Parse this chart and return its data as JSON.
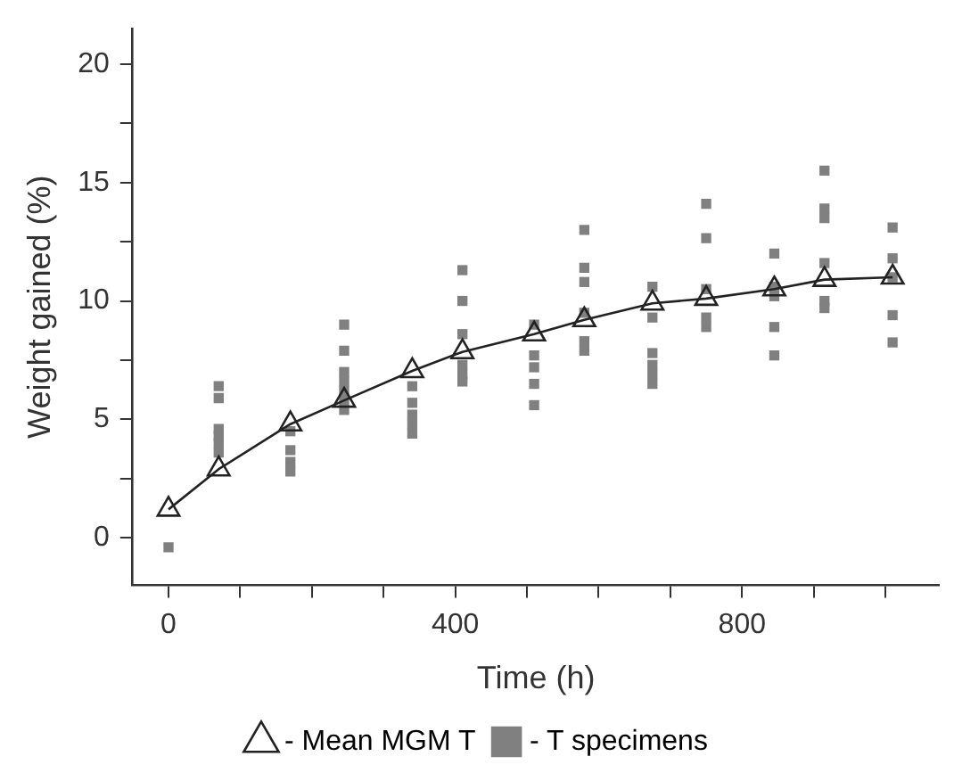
{
  "chart_data": {
    "type": "scatter",
    "xlabel": "Time (h)",
    "ylabel": "Weight gained (%)",
    "legend": "bottom",
    "xlim": [
      -50,
      1075
    ],
    "xticks": [
      0,
      {
        "value": 100,
        "label": null
      },
      {
        "value": 200,
        "label": null
      },
      {
        "value": 300,
        "label": null
      },
      400,
      {
        "value": 500,
        "label": null
      },
      {
        "value": 600,
        "label": null
      },
      {
        "value": 700,
        "label": null
      },
      800,
      {
        "value": 900,
        "label": null
      },
      {
        "value": 1000,
        "label": null
      }
    ],
    "ylim": [
      -2,
      21.5
    ],
    "yticks": [
      0,
      {
        "value": 2.5,
        "label": null
      },
      5,
      {
        "value": 7.5,
        "label": null
      },
      10,
      {
        "value": 12.5,
        "label": null
      },
      15,
      {
        "value": 17.5,
        "label": null
      },
      20
    ],
    "series": [
      {
        "name": "- Mean MGM T",
        "type": "line",
        "marker": "triangle",
        "color": "#222222",
        "x": [
          0,
          70,
          170,
          245,
          340,
          410,
          510,
          580,
          675,
          750,
          845,
          915,
          1010
        ],
        "values": [
          1.2,
          2.9,
          4.8,
          5.8,
          7.05,
          7.85,
          8.6,
          9.2,
          9.9,
          10.1,
          10.5,
          10.9,
          11.0
        ]
      },
      {
        "name": "- T specimens",
        "type": "scatter",
        "marker": "square",
        "color": "#808080",
        "x": [
          0,
          70,
          70,
          70,
          70,
          70,
          70,
          170,
          170,
          170,
          170,
          245,
          245,
          245,
          245,
          245,
          245,
          245,
          340,
          340,
          340,
          340,
          340,
          410,
          410,
          410,
          410,
          410,
          410,
          510,
          510,
          510,
          510,
          510,
          580,
          580,
          580,
          580,
          580,
          580,
          675,
          675,
          675,
          675,
          675,
          675,
          750,
          750,
          750,
          750,
          750,
          845,
          845,
          845,
          845,
          845,
          915,
          915,
          915,
          915,
          915,
          915,
          1010,
          1010,
          1010,
          1010,
          1010
        ],
        "values": [
          -0.4,
          6.4,
          5.9,
          4.6,
          4.3,
          4.0,
          3.6,
          4.5,
          3.7,
          3.2,
          2.8,
          9.0,
          7.9,
          7.0,
          6.6,
          6.2,
          5.8,
          5.4,
          6.4,
          5.7,
          5.2,
          4.8,
          4.4,
          11.3,
          10.0,
          8.6,
          7.3,
          6.9,
          6.6,
          9.0,
          7.7,
          7.2,
          6.5,
          5.6,
          13.0,
          11.4,
          10.8,
          9.5,
          8.3,
          7.9,
          10.6,
          9.3,
          7.8,
          7.3,
          6.9,
          6.5,
          14.1,
          12.65,
          10.5,
          9.3,
          8.9,
          12.0,
          10.6,
          10.2,
          8.9,
          7.7,
          15.5,
          13.9,
          13.5,
          11.6,
          10.0,
          9.7,
          13.1,
          11.8,
          11.0,
          9.4,
          8.25
        ]
      }
    ]
  }
}
